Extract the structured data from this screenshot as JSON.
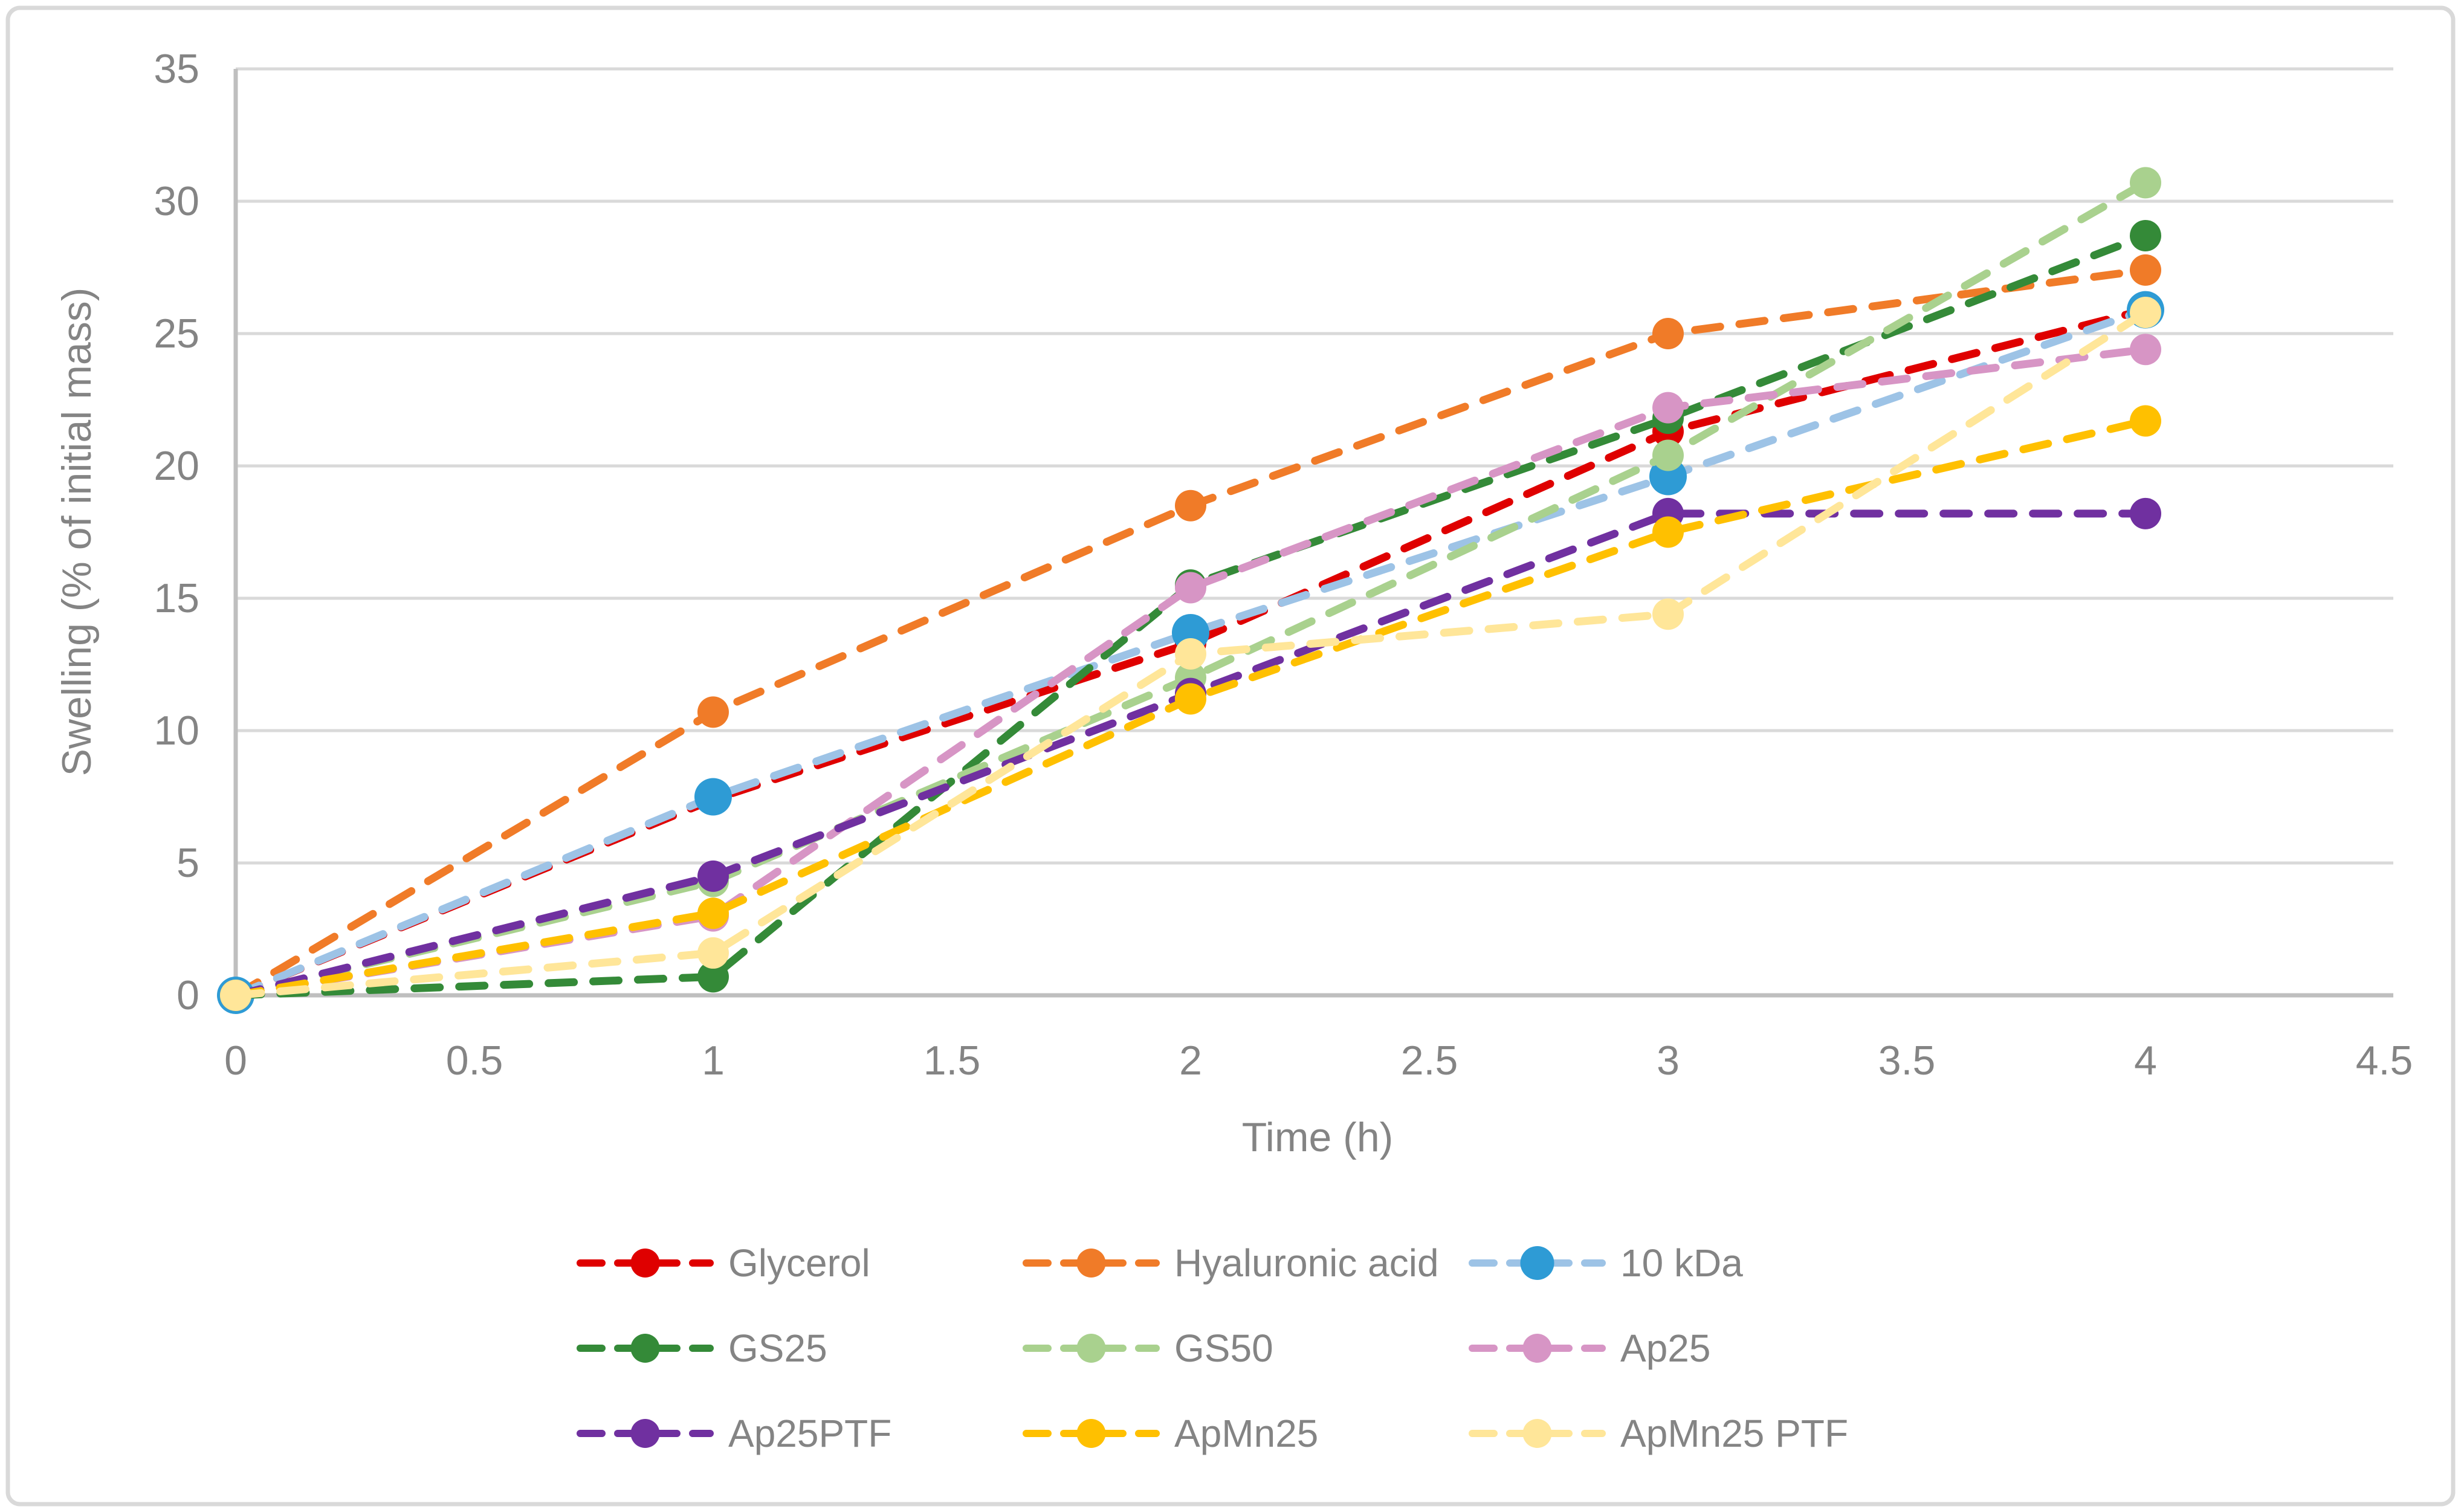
{
  "chart_data": {
    "type": "line",
    "title": "",
    "xlabel": "Time (h)",
    "ylabel": "Swelling (% of initial mass)",
    "x": [
      0,
      1,
      2,
      3,
      4
    ],
    "xlim": [
      0,
      4.5
    ],
    "ylim": [
      0,
      35
    ],
    "x_tick_labels": [
      "0",
      "0.5",
      "1",
      "1.5",
      "2",
      "2.5",
      "3",
      "3.5",
      "4",
      "4.5"
    ],
    "y_tick_labels": [
      "0",
      "5",
      "10",
      "15",
      "20",
      "25",
      "30",
      "35"
    ],
    "grid": "horizontal-only",
    "line_style": "dashed",
    "legend_position": "bottom-3-columns",
    "series": [
      {
        "name": "Glycerol",
        "color": "#DF0000",
        "marker_color": "#DF0000",
        "values": [
          0,
          7.4,
          13.3,
          21.3,
          25.9
        ]
      },
      {
        "name": "Hyaluronic acid",
        "color": "#F07B28",
        "marker_color": "#F07B28",
        "values": [
          0,
          10.7,
          18.5,
          25.0,
          27.4
        ]
      },
      {
        "name": "10 kDa",
        "color": "#9DC3E6",
        "marker_color": "#2E9BD5",
        "values": [
          0,
          7.5,
          13.7,
          19.6,
          25.9
        ]
      },
      {
        "name": "GS25",
        "color": "#348A38",
        "marker_color": "#348A38",
        "values": [
          0,
          0.7,
          15.5,
          21.8,
          28.7
        ]
      },
      {
        "name": "GS50",
        "color": "#A9D18E",
        "marker_color": "#A9D18E",
        "values": [
          0,
          4.3,
          12.0,
          20.4,
          30.7
        ]
      },
      {
        "name": "Ap25",
        "color": "#D795C5",
        "marker_color": "#D795C5",
        "values": [
          0,
          3.0,
          15.4,
          22.2,
          24.4
        ]
      },
      {
        "name": "Ap25PTF",
        "color": "#7030A0",
        "marker_color": "#7030A0",
        "values": [
          0,
          4.5,
          11.4,
          18.2,
          18.2
        ]
      },
      {
        "name": "ApMn25",
        "color": "#FFC000",
        "marker_color": "#FFC000",
        "values": [
          0,
          3.1,
          11.2,
          17.5,
          21.7
        ]
      },
      {
        "name": "ApMn25 PTF",
        "color": "#FFE699",
        "marker_color": "#FFE699",
        "values": [
          0,
          1.6,
          12.9,
          14.4,
          25.8
        ]
      }
    ],
    "colors": {
      "axis_text": "#848484",
      "gridline": "#D9D9D9",
      "axis_line": "#BFBFBF",
      "figure_border": "#D9D9D9",
      "background": "#FFFFFF"
    }
  }
}
